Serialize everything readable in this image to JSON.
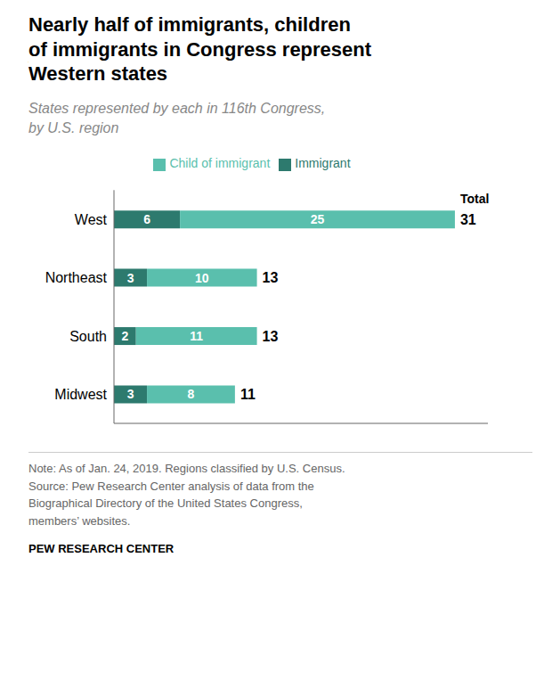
{
  "chart_data": {
    "type": "bar",
    "orientation": "horizontal",
    "stacked": true,
    "data_labels": true,
    "title": "Nearly half of immigrants, children\nof immigrants in Congress represent\nWestern states",
    "subtitle": "States represented by each in 116th Congress,\nby U.S. region",
    "note": "Note: As of Jan. 24, 2019. Regions classified by U.S. Census.\nSource: Pew Research Center analysis of data from the\nBiographical Directory of the United States Congress,\nmembers’ websites.",
    "source": "PEW RESEARCH CENTER",
    "categories": [
      "West",
      "Northeast",
      "South",
      "Midwest"
    ],
    "series": [
      {
        "name": "Immigrant",
        "color": "#2d7a6e",
        "values": [
          6,
          3,
          2,
          3
        ]
      },
      {
        "name": "Child of immigrant",
        "color": "#5abfad",
        "values": [
          25,
          10,
          11,
          8
        ]
      }
    ],
    "totals": [
      31,
      13,
      13,
      11
    ],
    "total_label": "Total",
    "xlim": [
      0,
      34
    ],
    "xticks": [],
    "tick_labels": "y",
    "grid": false,
    "legend": "top"
  }
}
